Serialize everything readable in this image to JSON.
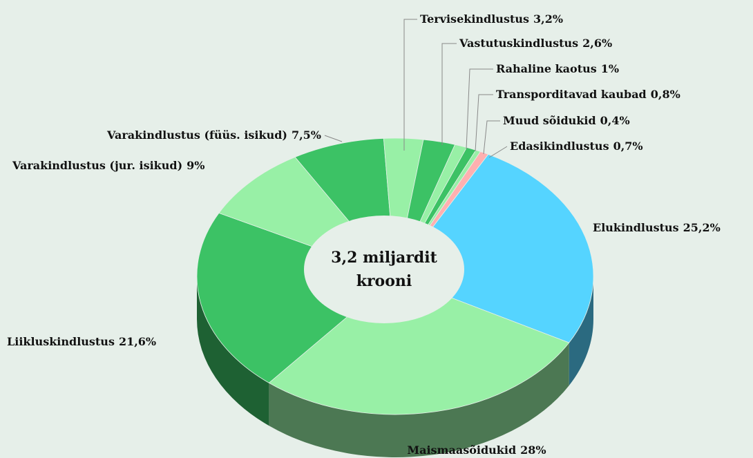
{
  "chart_data": {
    "type": "donut3d",
    "center_text": [
      "3,2 miljardit",
      "krooni"
    ],
    "categories": [
      "Elukindlustus",
      "Maismaasõidukid",
      "Liikluskindlustus",
      "Varakindlustus (jur. isikud)",
      "Varakindlustus (füüs. isikud)",
      "Tervisekindlustus",
      "Vastutuskindlustus",
      "Rahaline kaotus",
      "Transporditavad kaubad",
      "Muud sõidukid",
      "Edasikindlustus"
    ],
    "values": [
      25.2,
      28,
      21.6,
      9,
      7.5,
      3.2,
      2.6,
      1,
      0.8,
      0.4,
      0.7
    ],
    "value_labels": [
      "25,2%",
      "28%",
      "21,6%",
      "9%",
      "7,5%",
      "3,2%",
      "2,6%",
      "1%",
      "0,8%",
      "0,4%",
      "0,7%"
    ],
    "colors": [
      "#55d4ff",
      "#98f0a6",
      "#3cc265",
      "#98f0a6",
      "#3cc265",
      "#98f0a6",
      "#3cc265",
      "#98f0a6",
      "#3cc265",
      "#98f0a6",
      "#ffb0b0"
    ]
  }
}
